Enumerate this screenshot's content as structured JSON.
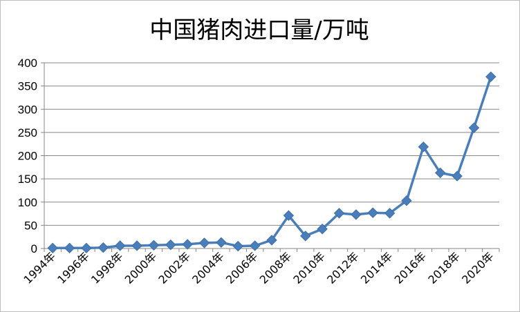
{
  "chart_data": {
    "type": "line",
    "title": "中国猪肉进口量/万吨",
    "xlabel": "",
    "ylabel": "",
    "ylim": [
      0,
      400
    ],
    "yticks": [
      0,
      50,
      100,
      150,
      200,
      250,
      300,
      350,
      400
    ],
    "grid": true,
    "legend": "none",
    "marker": "diamond",
    "color": "#4A7EBB",
    "x": [
      "1994年",
      "1995年",
      "1996年",
      "1997年",
      "1998年",
      "1999年",
      "2000年",
      "2001年",
      "2002年",
      "2003年",
      "2004年",
      "2005年",
      "2006年",
      "2007年",
      "2008年",
      "2009年",
      "2010年",
      "2011年",
      "2012年",
      "2013年",
      "2014年",
      "2015年",
      "2016年",
      "2017年",
      "2018年",
      "2019年",
      "2020年"
    ],
    "xtick_labels": [
      "1994年",
      "1996年",
      "1998年",
      "2000年",
      "2002年",
      "2004年",
      "2006年",
      "2008年",
      "2010年",
      "2012年",
      "2014年",
      "2016年",
      "2018年",
      "2020年"
    ],
    "series": [
      {
        "values": [
          1,
          1,
          1,
          2,
          6,
          6,
          7,
          8,
          9,
          12,
          13,
          5,
          6,
          18,
          71,
          27,
          42,
          76,
          73,
          77,
          76,
          103,
          219,
          163,
          156,
          260,
          370
        ]
      }
    ]
  }
}
